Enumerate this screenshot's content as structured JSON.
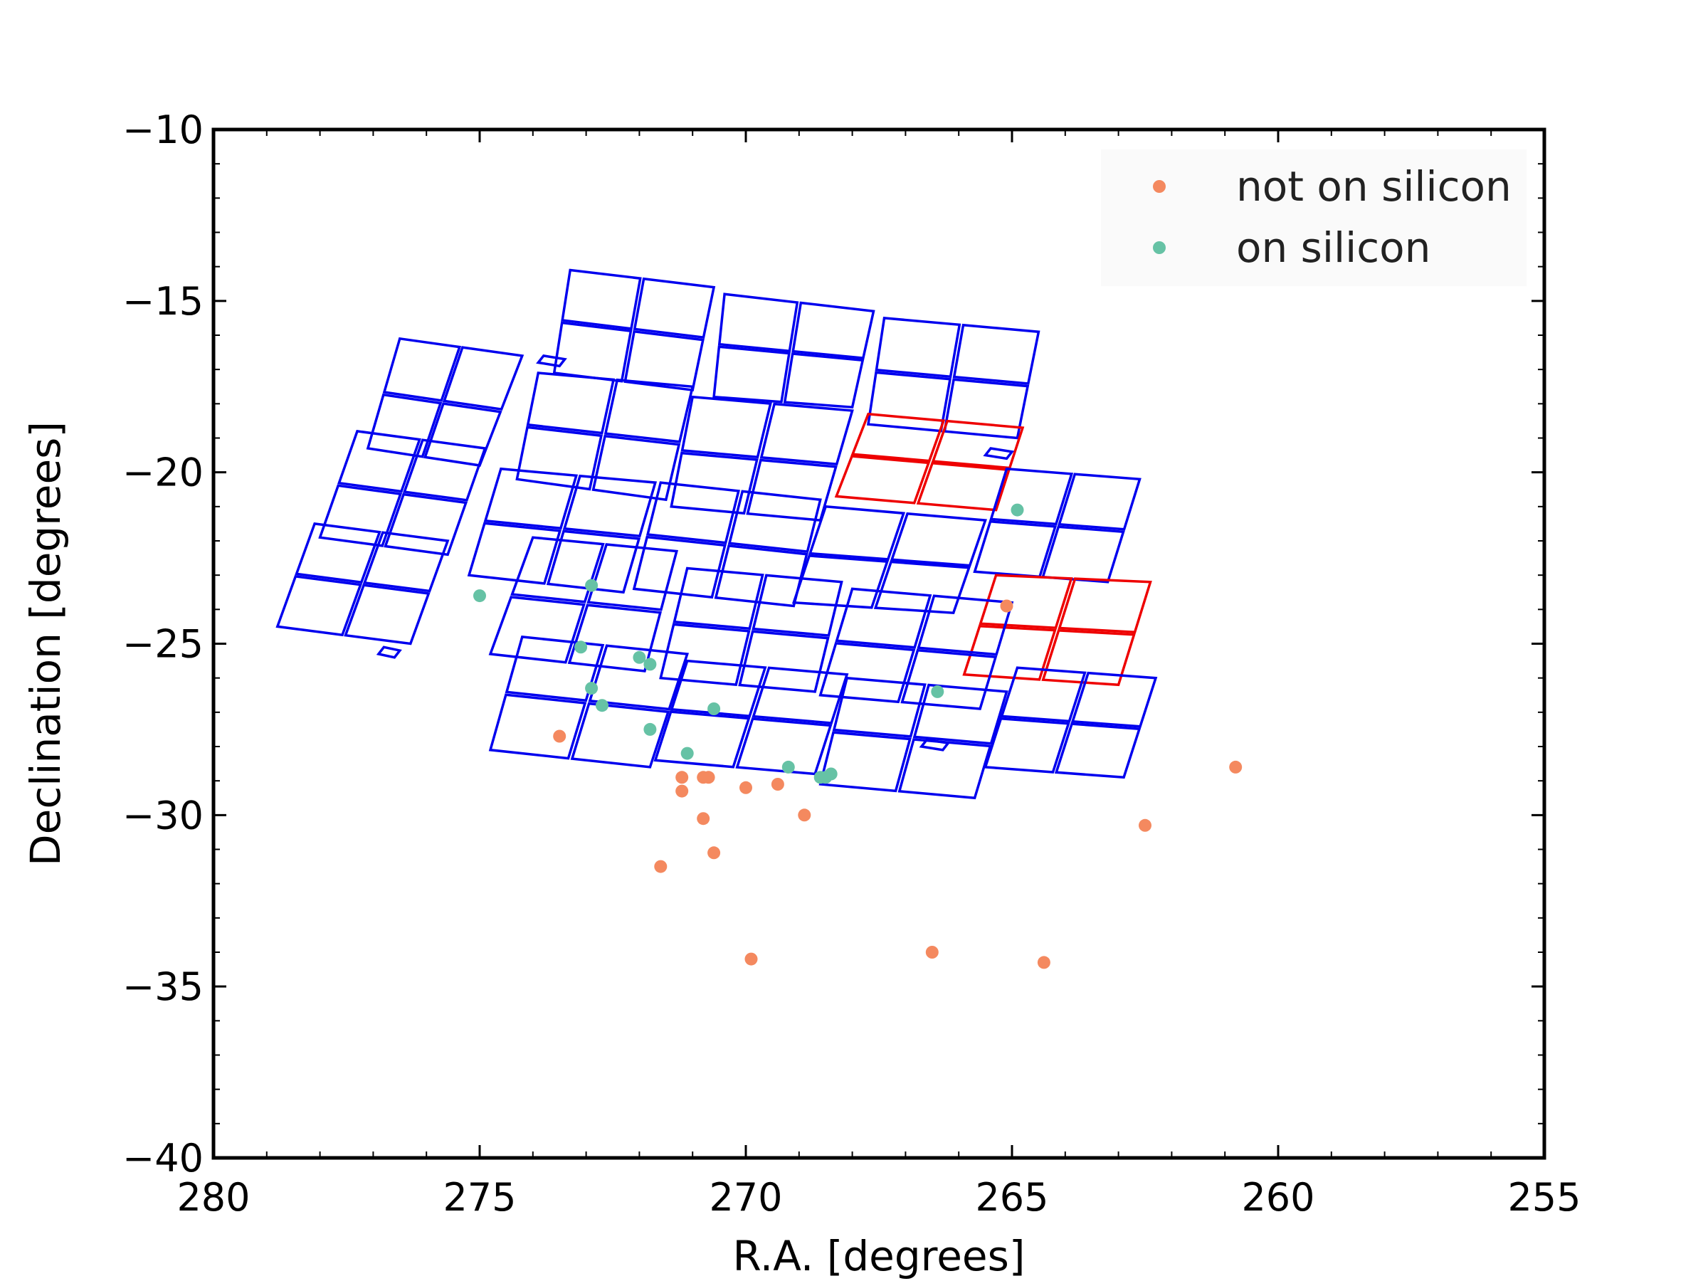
{
  "chart_data": {
    "type": "scatter",
    "xlabel": "R.A. [degrees]",
    "ylabel": "Declination [degrees]",
    "xlim": [
      280,
      255
    ],
    "ylim": [
      -40,
      -10
    ],
    "xticks": [
      280,
      275,
      270,
      265,
      260,
      255
    ],
    "xtick_labels": [
      "280",
      "275",
      "270",
      "265",
      "260",
      "255"
    ],
    "yticks": [
      -10,
      -15,
      -20,
      -25,
      -30,
      -35,
      -40
    ],
    "ytick_labels": [
      "−10",
      "−15",
      "−20",
      "−25",
      "−30",
      "−35",
      "−40"
    ],
    "grid": false,
    "legend_position": "top-right",
    "colors": {
      "not_on_silicon": "#f4895f",
      "on_silicon": "#66c2a5",
      "ccd_active": "#0000ee",
      "ccd_flagged": "#ee0000"
    },
    "series": [
      {
        "name": "not on silicon",
        "color": "#f4895f",
        "points": [
          [
            273.5,
            -27.7
          ],
          [
            271.2,
            -28.9
          ],
          [
            271.2,
            -29.3
          ],
          [
            270.8,
            -28.9
          ],
          [
            270.7,
            -28.9
          ],
          [
            270.0,
            -29.2
          ],
          [
            269.4,
            -29.1
          ],
          [
            270.8,
            -30.1
          ],
          [
            268.9,
            -30.0
          ],
          [
            270.6,
            -31.1
          ],
          [
            271.6,
            -31.5
          ],
          [
            269.9,
            -34.2
          ],
          [
            266.5,
            -34.0
          ],
          [
            264.4,
            -34.3
          ],
          [
            262.5,
            -30.3
          ],
          [
            260.8,
            -28.6
          ],
          [
            265.1,
            -23.9
          ]
        ]
      },
      {
        "name": "on silicon",
        "color": "#66c2a5",
        "points": [
          [
            275.0,
            -23.6
          ],
          [
            272.9,
            -23.3
          ],
          [
            273.1,
            -25.1
          ],
          [
            272.0,
            -25.4
          ],
          [
            271.8,
            -25.6
          ],
          [
            272.9,
            -26.3
          ],
          [
            272.7,
            -26.8
          ],
          [
            271.8,
            -27.5
          ],
          [
            270.6,
            -26.9
          ],
          [
            271.1,
            -28.2
          ],
          [
            269.2,
            -28.6
          ],
          [
            268.6,
            -28.9
          ],
          [
            268.5,
            -28.9
          ],
          [
            268.4,
            -28.8
          ],
          [
            266.4,
            -26.4
          ],
          [
            264.9,
            -21.1
          ]
        ]
      }
    ],
    "footprint": {
      "modules": [
        {
          "corners": [
            [
              276.5,
              -16.1
            ],
            [
              274.2,
              -16.6
            ],
            [
              275.0,
              -19.8
            ],
            [
              277.1,
              -19.3
            ]
          ],
          "status": "active"
        },
        {
          "corners": [
            [
              273.3,
              -14.1
            ],
            [
              270.6,
              -14.6
            ],
            [
              271.0,
              -17.6
            ],
            [
              273.6,
              -17.1
            ]
          ],
          "status": "active"
        },
        {
          "corners": [
            [
              270.4,
              -14.8
            ],
            [
              267.6,
              -15.3
            ],
            [
              268.0,
              -18.1
            ],
            [
              270.6,
              -17.8
            ]
          ],
          "status": "active"
        },
        {
          "corners": [
            [
              267.4,
              -15.5
            ],
            [
              264.5,
              -15.9
            ],
            [
              264.9,
              -19.0
            ],
            [
              267.7,
              -18.6
            ]
          ],
          "status": "active"
        },
        {
          "corners": [
            [
              277.3,
              -18.8
            ],
            [
              274.9,
              -19.3
            ],
            [
              275.6,
              -22.4
            ],
            [
              278.0,
              -21.9
            ]
          ],
          "status": "active"
        },
        {
          "corners": [
            [
              273.9,
              -17.1
            ],
            [
              271.0,
              -17.5
            ],
            [
              271.5,
              -20.8
            ],
            [
              274.3,
              -20.2
            ]
          ],
          "status": "active"
        },
        {
          "corners": [
            [
              271.0,
              -17.8
            ],
            [
              268.0,
              -18.2
            ],
            [
              268.6,
              -21.4
            ],
            [
              271.4,
              -21.0
            ]
          ],
          "status": "active"
        },
        {
          "corners": [
            [
              267.7,
              -18.3
            ],
            [
              264.8,
              -18.7
            ],
            [
              265.3,
              -21.1
            ],
            [
              268.3,
              -20.7
            ]
          ],
          "status": "flagged"
        },
        {
          "corners": [
            [
              265.1,
              -19.9
            ],
            [
              262.6,
              -20.2
            ],
            [
              263.2,
              -23.2
            ],
            [
              265.7,
              -22.9
            ]
          ],
          "status": "active"
        },
        {
          "corners": [
            [
              278.1,
              -21.5
            ],
            [
              275.6,
              -22.0
            ],
            [
              276.3,
              -25.0
            ],
            [
              278.8,
              -24.5
            ]
          ],
          "status": "active"
        },
        {
          "corners": [
            [
              274.6,
              -19.9
            ],
            [
              271.7,
              -20.3
            ],
            [
              272.3,
              -23.5
            ],
            [
              275.2,
              -23.0
            ]
          ],
          "status": "active"
        },
        {
          "corners": [
            [
              271.6,
              -20.3
            ],
            [
              268.6,
              -20.8
            ],
            [
              269.1,
              -23.9
            ],
            [
              272.1,
              -23.4
            ]
          ],
          "status": "active"
        },
        {
          "corners": [
            [
              268.5,
              -21.0
            ],
            [
              265.5,
              -21.4
            ],
            [
              266.1,
              -24.1
            ],
            [
              269.1,
              -23.8
            ]
          ],
          "status": "active"
        },
        {
          "corners": [
            [
              265.3,
              -23.0
            ],
            [
              262.4,
              -23.2
            ],
            [
              263.0,
              -26.2
            ],
            [
              265.9,
              -25.9
            ]
          ],
          "status": "flagged"
        },
        {
          "corners": [
            [
              274.0,
              -21.9
            ],
            [
              271.3,
              -22.3
            ],
            [
              271.9,
              -25.8
            ],
            [
              274.8,
              -25.3
            ]
          ],
          "status": "active"
        },
        {
          "corners": [
            [
              271.1,
              -22.8
            ],
            [
              268.2,
              -23.2
            ],
            [
              268.7,
              -26.4
            ],
            [
              271.6,
              -26.0
            ]
          ],
          "status": "active"
        },
        {
          "corners": [
            [
              268.0,
              -23.4
            ],
            [
              265.0,
              -23.8
            ],
            [
              265.6,
              -26.9
            ],
            [
              268.6,
              -26.5
            ]
          ],
          "status": "active"
        },
        {
          "corners": [
            [
              264.9,
              -25.7
            ],
            [
              262.3,
              -26.0
            ],
            [
              262.9,
              -28.9
            ],
            [
              265.5,
              -28.6
            ]
          ],
          "status": "active"
        },
        {
          "corners": [
            [
              274.2,
              -24.8
            ],
            [
              271.1,
              -25.3
            ],
            [
              271.8,
              -28.6
            ],
            [
              274.8,
              -28.1
            ]
          ],
          "status": "active"
        },
        {
          "corners": [
            [
              271.1,
              -25.5
            ],
            [
              268.1,
              -25.9
            ],
            [
              268.7,
              -28.8
            ],
            [
              271.7,
              -28.4
            ]
          ],
          "status": "active"
        },
        {
          "corners": [
            [
              268.1,
              -26.0
            ],
            [
              265.1,
              -26.4
            ],
            [
              265.7,
              -29.5
            ],
            [
              268.6,
              -29.1
            ]
          ],
          "status": "active"
        }
      ],
      "small_chips": [
        {
          "corners": [
            [
              273.8,
              -16.6
            ],
            [
              273.4,
              -16.7
            ],
            [
              273.5,
              -16.9
            ],
            [
              273.9,
              -16.8
            ]
          ]
        },
        {
          "corners": [
            [
              265.4,
              -19.3
            ],
            [
              265.0,
              -19.4
            ],
            [
              265.1,
              -19.6
            ],
            [
              265.5,
              -19.5
            ]
          ]
        },
        {
          "corners": [
            [
              276.8,
              -25.1
            ],
            [
              276.5,
              -25.2
            ],
            [
              276.6,
              -25.4
            ],
            [
              276.9,
              -25.3
            ]
          ]
        },
        {
          "corners": [
            [
              266.6,
              -27.8
            ],
            [
              266.2,
              -27.9
            ],
            [
              266.3,
              -28.1
            ],
            [
              266.7,
              -28.0
            ]
          ]
        }
      ]
    }
  }
}
